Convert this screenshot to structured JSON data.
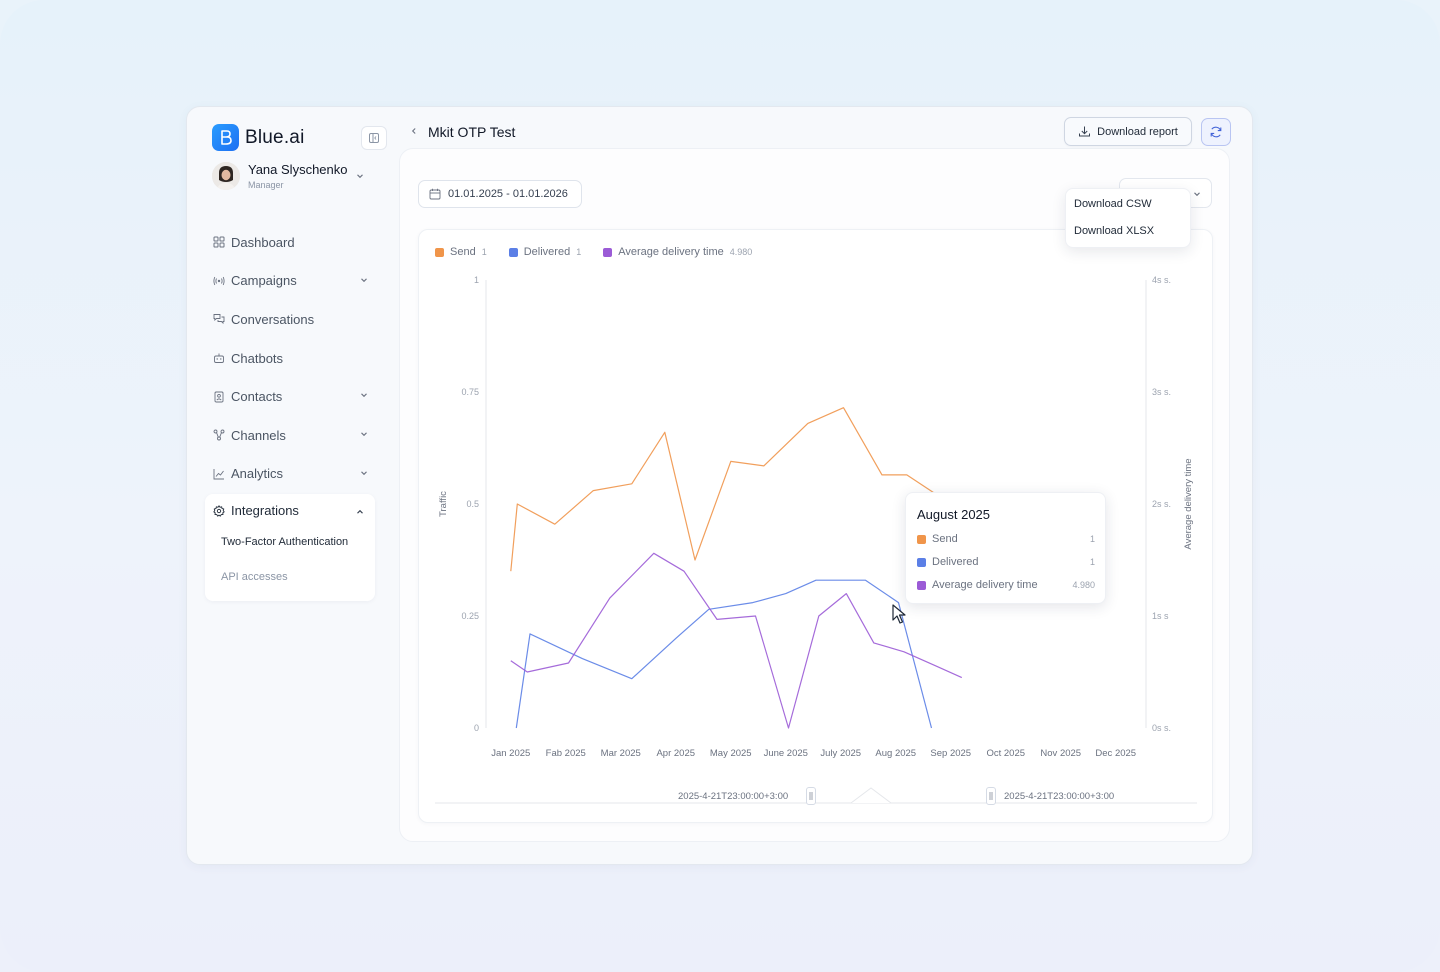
{
  "app": {
    "name": "Blue.ai"
  },
  "user": {
    "name": "Yana Slyschenko",
    "role": "Manager"
  },
  "nav": {
    "items": [
      {
        "label": "Dashboard",
        "icon": "dashboard-icon"
      },
      {
        "label": "Campaigns",
        "icon": "broadcast-icon"
      },
      {
        "label": "Conversations",
        "icon": "chat-icon"
      },
      {
        "label": "Chatbots",
        "icon": "bot-icon"
      },
      {
        "label": "Contacts",
        "icon": "contacts-icon"
      },
      {
        "label": "Channels",
        "icon": "channels-icon"
      },
      {
        "label": "Analytics",
        "icon": "analytics-icon"
      }
    ],
    "integrations": {
      "label": "Integrations",
      "sub": [
        "Two-Factor Authentication",
        "API accesses"
      ]
    }
  },
  "header": {
    "title": "Mkit OTP Test",
    "download_label": "Download report",
    "download_options": [
      "Download CSW",
      "Download XLSX"
    ]
  },
  "filters": {
    "date_range": "01.01.2025 - 01.01.2026"
  },
  "legend": [
    {
      "name": "Send",
      "value": "1",
      "color": "#f0954a"
    },
    {
      "name": "Delivered",
      "value": "1",
      "color": "#5b7fe6"
    },
    {
      "name": "Average delivery time",
      "value": "4.980",
      "color": "#9b5bd6"
    }
  ],
  "tooltip": {
    "title": "August 2025",
    "rows": [
      {
        "name": "Send",
        "value": "1",
        "color": "#f0954a"
      },
      {
        "name": "Delivered",
        "value": "1",
        "color": "#5b7fe6"
      },
      {
        "name": "Average delivery time",
        "value": "4.980",
        "color": "#9b5bd6"
      }
    ]
  },
  "slider": {
    "start": "2025-4-21T23:00:00+3:00",
    "end": "2025-4-21T23:00:00+3:00"
  },
  "chart_data": {
    "type": "line",
    "ylabel": "Traffic",
    "y2label": "Average delivery time",
    "yticks": [
      "0",
      "0.25",
      "0.5",
      "0.75",
      "1"
    ],
    "y2ticks": [
      "0s s.",
      "1s s",
      "2s s.",
      "3s s.",
      "4s s."
    ],
    "ylim": [
      0,
      1
    ],
    "y2lim": [
      0,
      4
    ],
    "grid": false,
    "legend_position": "top-left",
    "categories": [
      "Jan 2025",
      "Fab 2025",
      "Mar 2025",
      "Apr 2025",
      "May 2025",
      "June 2025",
      "July 2025",
      "Aug 2025",
      "Sep 2025",
      "Oct 2025",
      "Nov 2025",
      "Dec 2025"
    ],
    "series": [
      {
        "name": "Send",
        "color": "#f0954a",
        "axis": "left",
        "x": [
          0,
          0.12,
          0.8,
          1.5,
          2.2,
          2.8,
          3.35,
          4.0,
          4.6,
          5.4,
          6.05,
          6.75,
          7.2,
          8.0,
          8.95,
          9.5,
          10.2
        ],
        "y": [
          0.35,
          0.5,
          0.455,
          0.53,
          0.545,
          0.66,
          0.375,
          0.595,
          0.585,
          0.68,
          0.715,
          0.565,
          0.565,
          0.5,
          0.5,
          0.5,
          0.5
        ]
      },
      {
        "name": "Delivered",
        "color": "#5b7fe6",
        "axis": "left",
        "x": [
          0.1,
          0.35,
          1.3,
          2.2,
          3.0,
          3.6,
          4.4,
          5.0,
          5.55,
          6.0,
          6.45,
          7.05,
          7.65
        ],
        "y": [
          0.0,
          0.21,
          0.155,
          0.11,
          0.2,
          0.265,
          0.28,
          0.3,
          0.33,
          0.33,
          0.33,
          0.28,
          0.0
        ]
      },
      {
        "name": "Average delivery time",
        "color": "#9b5bd6",
        "axis": "right",
        "x": [
          0,
          0.3,
          1.05,
          1.8,
          2.6,
          3.15,
          3.75,
          4.45,
          5.05,
          5.6,
          6.1,
          6.6,
          7.15,
          7.75,
          8.2
        ],
        "y": [
          0.6,
          0.5,
          0.58,
          1.16,
          1.56,
          1.4,
          0.97,
          1.0,
          0.0,
          1.0,
          1.2,
          0.76,
          0.68,
          0.55,
          0.45
        ]
      }
    ]
  }
}
